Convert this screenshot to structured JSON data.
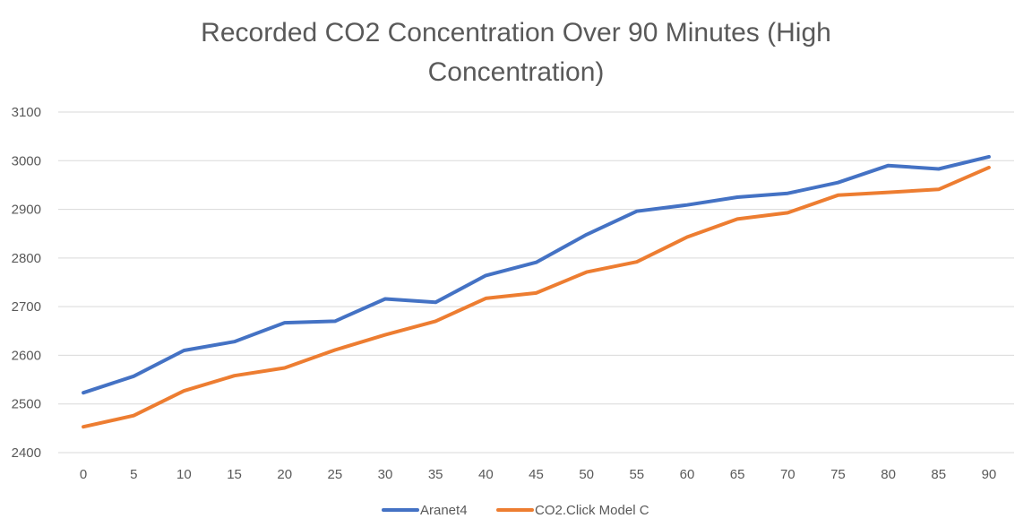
{
  "chart_data": {
    "type": "line",
    "title_lines": [
      "Recorded CO2 Concentration Over 90 Minutes (High",
      "Concentration)"
    ],
    "title": "Recorded CO2 Concentration Over 90 Minutes (High Concentration)",
    "xlabel": "",
    "ylabel": "",
    "x": [
      0,
      5,
      10,
      15,
      20,
      25,
      30,
      35,
      40,
      45,
      50,
      55,
      60,
      65,
      70,
      75,
      80,
      85,
      90
    ],
    "ylim": [
      2400,
      3100
    ],
    "yticks": [
      2400,
      2500,
      2600,
      2700,
      2800,
      2900,
      3000,
      3100
    ],
    "grid": true,
    "legend_position": "bottom",
    "series": [
      {
        "name": "Aranet4",
        "color": "#4472c4",
        "values": [
          2523,
          2557,
          2610,
          2628,
          2667,
          2670,
          2716,
          2709,
          2764,
          2791,
          2848,
          2896,
          2909,
          2925,
          2933,
          2955,
          2990,
          2983,
          3008
        ]
      },
      {
        "name": "CO2.Click Model C",
        "color": "#ed7d31",
        "values": [
          2453,
          2476,
          2527,
          2558,
          2574,
          2611,
          2642,
          2670,
          2717,
          2728,
          2771,
          2792,
          2843,
          2880,
          2893,
          2929,
          2935,
          2941,
          2986
        ]
      }
    ]
  }
}
